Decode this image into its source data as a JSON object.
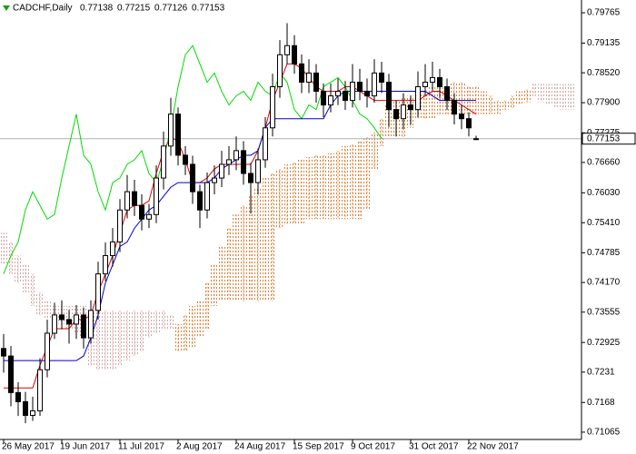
{
  "header": {
    "symbol": "CADCHF,Daily",
    "ohlc": [
      0.77138,
      0.77215,
      0.77126,
      0.77153
    ]
  },
  "chart_data": {
    "type": "candlestick",
    "categories": [
      "26 May 2017",
      null,
      null,
      null,
      null,
      null,
      null,
      null,
      "19 Jun 2017",
      null,
      null,
      null,
      null,
      null,
      null,
      null,
      "11 Jul 2017",
      null,
      null,
      null,
      null,
      null,
      null,
      null,
      "2 Aug 2017",
      null,
      null,
      null,
      null,
      null,
      null,
      null,
      "24 Aug 2017",
      null,
      null,
      null,
      null,
      null,
      null,
      null,
      "15 Sep 2017",
      null,
      null,
      null,
      null,
      null,
      null,
      null,
      "9 Oct 2017",
      null,
      null,
      null,
      null,
      null,
      null,
      null,
      "31 Oct 2017",
      null,
      null,
      null,
      null,
      null,
      null,
      null,
      "22 Nov 2017",
      null,
      null,
      null,
      null,
      null,
      null,
      null,
      null,
      null,
      null,
      null,
      null,
      null,
      null
    ],
    "open": [
      0.728,
      0.72644,
      0.71886,
      0.71697,
      0.71413,
      0.71507,
      0.7236,
      0.73117,
      0.73496,
      0.73401,
      0.73307,
      0.73496,
      0.73022,
      0.73591,
      0.74348,
      0.74727,
      0.75011,
      0.75674,
      0.76053,
      0.75769,
      0.75485,
      0.75579,
      0.76337,
      0.77,
      0.77663,
      0.7681,
      0.76621,
      0.76053,
      0.75674,
      0.76242,
      0.76337,
      0.76621,
      0.76716,
      0.76905,
      0.76432,
      0.76242,
      0.76716,
      0.77378,
      0.78231,
      0.78894,
      0.79083,
      0.78704,
      0.78325,
      0.78515,
      0.78136,
      0.77852,
      0.78041,
      0.78136,
      0.77947,
      0.78325,
      0.78136,
      0.78041,
      0.78515,
      0.78325,
      0.77757,
      0.77568,
      0.77852,
      0.77757,
      0.78231,
      0.78325,
      0.7842,
      0.78231,
      0.77947,
      0.77663,
      0.77568,
      0.77138,
      null,
      null,
      null,
      null,
      null,
      null,
      null,
      null,
      null,
      null,
      null,
      null,
      null
    ],
    "high": [
      0.731,
      0.7285,
      0.721,
      0.719,
      0.718,
      0.726,
      0.734,
      0.7375,
      0.738,
      0.736,
      0.737,
      0.7365,
      0.738,
      0.746,
      0.75,
      0.753,
      0.759,
      0.764,
      0.763,
      0.76,
      0.758,
      0.766,
      0.773,
      0.78,
      0.778,
      0.77,
      0.768,
      0.762,
      0.7645,
      0.766,
      0.769,
      0.77,
      0.772,
      0.771,
      0.7665,
      0.7695,
      0.776,
      0.785,
      0.792,
      0.7955,
      0.793,
      0.789,
      0.788,
      0.787,
      0.783,
      0.783,
      0.784,
      0.7835,
      0.787,
      0.786,
      0.784,
      0.788,
      0.7875,
      0.785,
      0.7795,
      0.781,
      0.7805,
      0.7855,
      0.787,
      0.7875,
      0.786,
      0.784,
      0.781,
      0.7785,
      0.777,
      0.77215,
      null,
      null,
      null,
      null,
      null,
      null,
      null,
      null,
      null,
      null,
      null,
      null,
      null
    ],
    "low": [
      0.723,
      0.716,
      0.714,
      0.7125,
      0.713,
      0.714,
      0.722,
      0.73,
      0.732,
      0.729,
      0.73,
      0.728,
      0.729,
      0.734,
      0.742,
      0.745,
      0.748,
      0.755,
      0.7555,
      0.7525,
      0.753,
      0.754,
      0.761,
      0.768,
      0.766,
      0.764,
      0.758,
      0.753,
      0.755,
      0.76,
      0.7615,
      0.764,
      0.765,
      0.762,
      0.756,
      0.76,
      0.7655,
      0.772,
      0.78,
      0.787,
      0.785,
      0.781,
      0.781,
      0.779,
      0.776,
      0.777,
      0.7785,
      0.7775,
      0.778,
      0.7795,
      0.778,
      0.779,
      0.781,
      0.774,
      0.772,
      0.7735,
      0.7745,
      0.776,
      0.7805,
      0.7815,
      0.78,
      0.7775,
      0.7745,
      0.7735,
      0.772,
      0.77126,
      null,
      null,
      null,
      null,
      null,
      null,
      null,
      null,
      null,
      null,
      null,
      null,
      null
    ],
    "close": [
      0.72644,
      0.71886,
      0.71697,
      0.71413,
      0.71507,
      0.7236,
      0.73117,
      0.73496,
      0.73401,
      0.73307,
      0.73496,
      0.73022,
      0.73591,
      0.74348,
      0.74727,
      0.75011,
      0.75674,
      0.76053,
      0.75769,
      0.75485,
      0.75579,
      0.76337,
      0.77,
      0.77663,
      0.7681,
      0.76621,
      0.76053,
      0.75674,
      0.76242,
      0.76337,
      0.76621,
      0.76716,
      0.76905,
      0.76432,
      0.76242,
      0.76716,
      0.77378,
      0.78231,
      0.78894,
      0.79083,
      0.78704,
      0.78325,
      0.78515,
      0.78136,
      0.77852,
      0.78041,
      0.78136,
      0.77947,
      0.78325,
      0.78136,
      0.78041,
      0.78515,
      0.78325,
      0.77757,
      0.77568,
      0.77852,
      0.77757,
      0.78231,
      0.78325,
      0.7842,
      0.78231,
      0.77947,
      0.77663,
      0.77568,
      0.77378,
      0.77153,
      null,
      null,
      null,
      null,
      null,
      null,
      null,
      null,
      null,
      null,
      null,
      null,
      null
    ],
    "lines": [
      {
        "color": "#00dd00",
        "values": [
          0.74348,
          0.74727,
          0.75011,
          0.75674,
          0.76053,
          0.75769,
          0.75485,
          0.75579,
          0.76337,
          0.77,
          0.77663,
          0.7681,
          0.76621,
          0.76053,
          0.75674,
          0.76242,
          0.76337,
          0.76621,
          0.76716,
          0.76905,
          0.76432,
          0.76242,
          0.76716,
          0.77378,
          0.78231,
          0.78894,
          0.79083,
          0.78704,
          0.78325,
          0.78515,
          0.78136,
          0.77852,
          0.78041,
          0.78136,
          0.77947,
          0.78325,
          0.78136,
          0.78041,
          0.78515,
          0.78325,
          0.77757,
          0.77568,
          0.77852,
          0.77757,
          0.78231,
          0.78325,
          0.7842,
          0.78231,
          0.77947,
          0.77663,
          0.77568,
          0.77378,
          0.77153,
          null,
          null,
          null,
          null,
          null,
          null,
          null,
          null,
          null,
          null,
          null,
          null,
          null,
          null,
          null,
          null,
          null,
          null,
          null,
          null,
          null,
          null,
          null,
          null,
          null,
          null
        ]
      },
      {
        "color": "#dd0000",
        "values": [
          0.71981,
          0.71981,
          0.71981,
          0.71981,
          0.71981,
          0.72454,
          0.72833,
          0.73212,
          0.73212,
          0.73212,
          0.73401,
          0.73401,
          0.73496,
          0.73969,
          0.74348,
          0.74727,
          0.752,
          0.75674,
          0.75769,
          0.75769,
          0.75863,
          0.76432,
          0.76905,
          0.77189,
          0.77094,
          0.76716,
          0.76242,
          0.76242,
          0.76337,
          0.76526,
          0.76621,
          0.76621,
          0.76621,
          0.76621,
          0.76621,
          0.76905,
          0.77378,
          0.77947,
          0.78325,
          0.78704,
          0.78704,
          0.7861,
          0.7842,
          0.78231,
          0.78136,
          0.78136,
          0.78136,
          0.78231,
          0.78231,
          0.78136,
          0.78041,
          0.77947,
          0.77947,
          0.77947,
          0.77947,
          0.77947,
          0.77947,
          0.77947,
          0.78041,
          0.78136,
          0.78136,
          0.78041,
          0.77947,
          0.77852,
          0.77757,
          0.77663,
          null,
          null,
          null,
          null,
          null,
          null,
          null,
          null,
          null,
          null,
          null,
          null,
          null
        ]
      },
      {
        "color": "#0000cc",
        "values": [
          0.72549,
          0.72549,
          0.72549,
          0.72549,
          0.72549,
          0.72549,
          0.72549,
          0.72549,
          0.72549,
          0.72549,
          0.72549,
          0.72644,
          0.73022,
          0.73496,
          0.74159,
          0.74538,
          0.74916,
          0.75011,
          0.75295,
          0.75485,
          0.75674,
          0.75769,
          0.75958,
          0.76147,
          0.76242,
          0.76242,
          0.76242,
          0.76242,
          0.76242,
          0.76337,
          0.76526,
          0.76621,
          0.76716,
          0.7681,
          0.7681,
          0.76905,
          0.77378,
          0.77568,
          0.77568,
          0.77568,
          0.77568,
          0.77568,
          0.77568,
          0.77568,
          0.77568,
          0.77852,
          0.78041,
          0.78136,
          0.78136,
          0.78136,
          0.78136,
          0.78136,
          0.78136,
          0.78136,
          0.78136,
          0.78136,
          0.78136,
          0.78136,
          0.78136,
          0.78041,
          0.77947,
          0.77947,
          0.77947,
          0.77947,
          0.77947,
          0.77947,
          null,
          null,
          null,
          null,
          null,
          null,
          null,
          null,
          null,
          null,
          null,
          null,
          null
        ]
      }
    ],
    "cloud": {
      "up_color": "#e0823c",
      "down_color": "#d4a6a6",
      "span_a": [
        0.74538,
        0.74348,
        0.74159,
        0.73969,
        0.73685,
        0.73496,
        0.73401,
        0.73307,
        0.73307,
        0.73212,
        0.73117,
        0.73022,
        0.72454,
        0.7236,
        0.7236,
        0.7236,
        0.72454,
        0.72549,
        0.72644,
        0.72738,
        0.73022,
        0.73117,
        0.73212,
        0.73212,
        0.73307,
        0.73496,
        0.73685,
        0.7378,
        0.74159,
        0.74538,
        0.74916,
        0.75295,
        0.75579,
        0.75769,
        0.75958,
        0.76147,
        0.76337,
        0.76432,
        0.76526,
        0.76621,
        0.76659,
        0.76716,
        0.76772,
        0.7681,
        0.7681,
        0.76848,
        0.76905,
        0.77,
        0.77038,
        0.77094,
        0.77189,
        0.77284,
        0.77568,
        0.77852,
        0.77947,
        0.78041,
        0.78041,
        0.78136,
        0.78136,
        0.78231,
        0.78231,
        0.78231,
        0.78325,
        0.78325,
        0.78231,
        0.78231,
        0.78136,
        0.78041,
        0.77947,
        0.77947,
        0.78041,
        0.78136,
        0.78174,
        0.78041,
        0.77909,
        0.77852,
        0.77814,
        0.77757,
        0.77757
      ],
      "span_b": [
        0.752,
        0.75011,
        0.74727,
        0.74538,
        0.74348,
        0.73969,
        0.7378,
        0.73685,
        0.73685,
        0.73685,
        0.73685,
        0.73685,
        0.73591,
        0.73591,
        0.73591,
        0.73591,
        0.73591,
        0.73591,
        0.73591,
        0.73591,
        0.73591,
        0.73591,
        0.73591,
        0.73496,
        0.72738,
        0.72738,
        0.72833,
        0.73022,
        0.73212,
        0.73685,
        0.7378,
        0.7378,
        0.7378,
        0.7378,
        0.7378,
        0.7378,
        0.7378,
        0.7378,
        0.75295,
        0.7539,
        0.7539,
        0.7539,
        0.75485,
        0.75485,
        0.75485,
        0.75485,
        0.75485,
        0.75485,
        0.75485,
        0.75485,
        0.75674,
        0.76526,
        0.77,
        0.77189,
        0.77189,
        0.77189,
        0.77378,
        0.77568,
        0.77568,
        0.77568,
        0.77663,
        0.77663,
        0.77663,
        0.77663,
        0.77663,
        0.77663,
        0.77663,
        0.77663,
        0.77663,
        0.77757,
        0.77795,
        0.77852,
        0.77909,
        0.78288,
        0.78288,
        0.78288,
        0.78288,
        0.78288,
        0.78288
      ]
    },
    "current_price": 0.77153,
    "ylim": [
      0.70913,
      0.8003
    ],
    "yticks": [
      0.79765,
      0.79135,
      {
        "value": 0.7852,
        "label": "0.78520"
      },
      {
        "value": 0.779,
        "label": "0.77900"
      },
      0.77275,
      {
        "value": 0.7666,
        "label": "0.76660"
      },
      {
        "value": 0.7603,
        "label": "0.76030"
      },
      {
        "value": 0.7541,
        "label": "0.75410"
      },
      0.74785,
      {
        "value": 0.7417,
        "label": "0.74170"
      },
      0.73555,
      0.72925,
      0.7231,
      0.7168,
      0.71065
    ]
  }
}
